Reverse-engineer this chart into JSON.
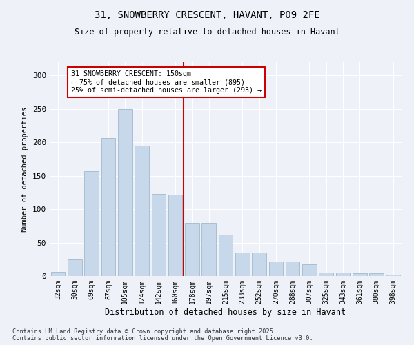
{
  "title": "31, SNOWBERRY CRESCENT, HAVANT, PO9 2FE",
  "subtitle": "Size of property relative to detached houses in Havant",
  "xlabel": "Distribution of detached houses by size in Havant",
  "ylabel": "Number of detached properties",
  "bar_color": "#c8d8eb",
  "bar_edge_color": "#a0b8cc",
  "background_color": "#eef2f8",
  "grid_color": "#ffffff",
  "property_line_color": "#cc0000",
  "annotation_text": "31 SNOWBERRY CRESCENT: 150sqm\n← 75% of detached houses are smaller (895)\n25% of semi-detached houses are larger (293) →",
  "annotation_box_color": "#ffffff",
  "annotation_border_color": "#cc0000",
  "categories": [
    "32sqm",
    "50sqm",
    "69sqm",
    "87sqm",
    "105sqm",
    "124sqm",
    "142sqm",
    "160sqm",
    "178sqm",
    "197sqm",
    "215sqm",
    "233sqm",
    "252sqm",
    "270sqm",
    "288sqm",
    "307sqm",
    "325sqm",
    "343sqm",
    "361sqm",
    "380sqm",
    "398sqm"
  ],
  "values": [
    6,
    25,
    157,
    206,
    250,
    195,
    123,
    122,
    80,
    80,
    62,
    35,
    35,
    22,
    22,
    18,
    5,
    5,
    4,
    4,
    2
  ],
  "ylim": [
    0,
    320
  ],
  "yticks": [
    0,
    50,
    100,
    150,
    200,
    250,
    300
  ],
  "footer": "Contains HM Land Registry data © Crown copyright and database right 2025.\nContains public sector information licensed under the Open Government Licence v3.0.",
  "vline_x": 7.5
}
